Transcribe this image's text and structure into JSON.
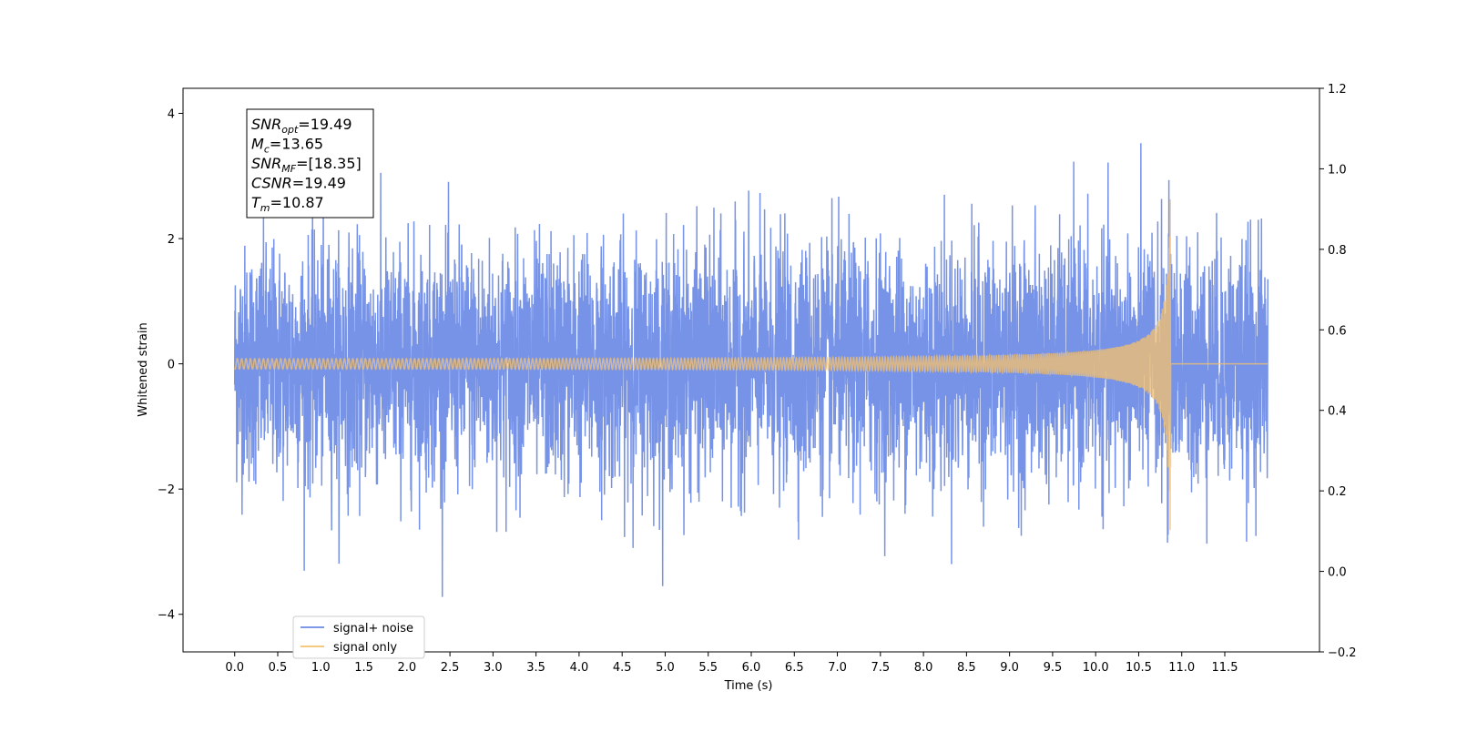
{
  "chart_data": {
    "type": "line",
    "xlabel": "Time (s)",
    "ylabel": "Whitened strain",
    "xlim": [
      -0.6,
      12.6
    ],
    "ylim": [
      -4.6,
      4.4
    ],
    "y2lim": [
      -0.2,
      1.2
    ],
    "x_ticks": [
      0.0,
      0.5,
      1.0,
      1.5,
      2.0,
      2.5,
      3.0,
      3.5,
      4.0,
      4.5,
      5.0,
      5.5,
      6.0,
      6.5,
      7.0,
      7.5,
      8.0,
      8.5,
      9.0,
      9.5,
      10.0,
      10.5,
      11.0,
      11.5
    ],
    "x_tick_labels": [
      "0.0",
      "0.5",
      "1.0",
      "1.5",
      "2.0",
      "2.5",
      "3.0",
      "3.5",
      "4.0",
      "4.5",
      "5.0",
      "5.5",
      "6.0",
      "6.5",
      "7.0",
      "7.5",
      "8.0",
      "8.5",
      "9.0",
      "9.5",
      "10.0",
      "10.5",
      "11.0",
      "11.5"
    ],
    "y_ticks": [
      -4,
      -2,
      0,
      2,
      4
    ],
    "y_tick_labels": [
      "−4",
      "−2",
      "0",
      "2",
      "4"
    ],
    "y2_ticks": [
      -0.2,
      0.0,
      0.2,
      0.4,
      0.6,
      0.8,
      1.0,
      1.2
    ],
    "y2_tick_labels": [
      "−0.2",
      "0.0",
      "0.2",
      "0.4",
      "0.6",
      "0.8",
      "1.0",
      "1.2"
    ],
    "grid": false,
    "legend_position": "bottom-left",
    "series": [
      {
        "name": "signal+ noise",
        "color": "#6b8ae5",
        "x_start": 0.0,
        "x_end": 12.0,
        "typical_amplitude": 1.1,
        "peak_max": 4.0,
        "peak_min": -4.2
      },
      {
        "name": "signal only",
        "color": "#f5c26b",
        "x_start": 0.0,
        "x_end": 12.0,
        "merger_time": 10.87,
        "initial_amplitude": 0.05,
        "peak_amplitude": 3.1
      }
    ],
    "annotation": {
      "lines": [
        {
          "base": "SNR",
          "sub": "opt",
          "value": "=19.49"
        },
        {
          "base": "M",
          "sub": "c",
          "value": "=13.65"
        },
        {
          "base": "SNR",
          "sub": "MF",
          "value": "=[18.35]"
        },
        {
          "base": "CSNR",
          "sub": "",
          "value": "=19.49"
        },
        {
          "base": "T",
          "sub": "m",
          "value": "=10.87"
        }
      ]
    }
  }
}
